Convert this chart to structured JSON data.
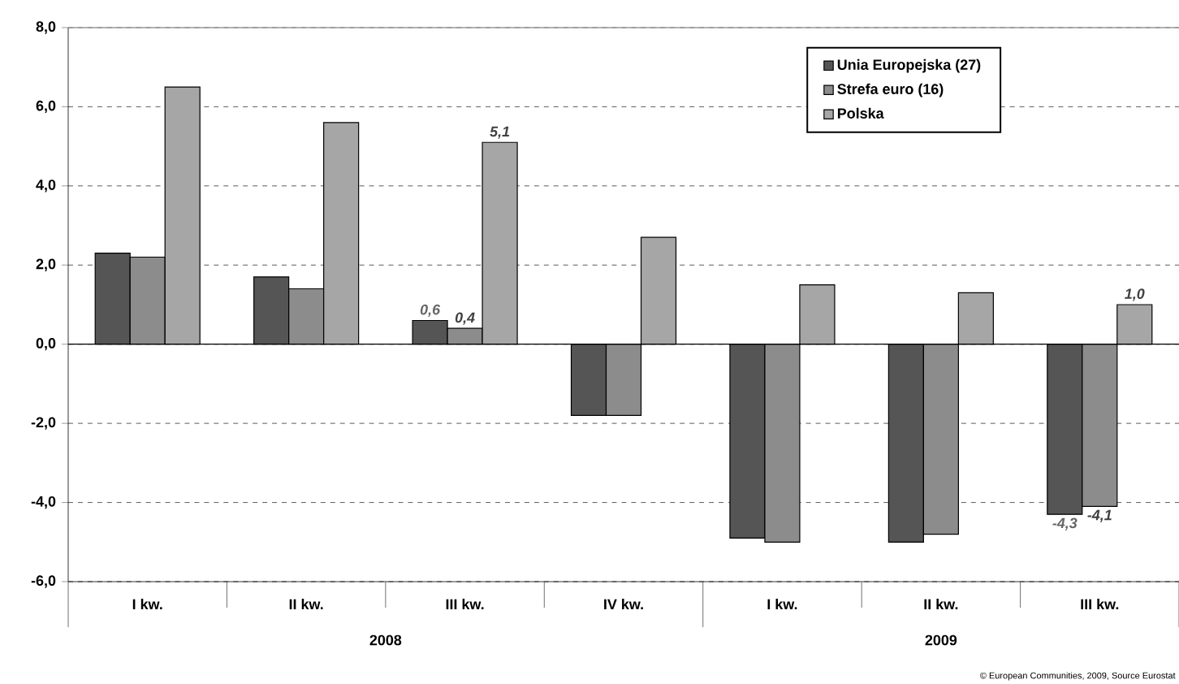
{
  "chart_data": {
    "type": "bar",
    "categories": [
      "I kw.",
      "II kw.",
      "III kw.",
      "IV kw.",
      "I kw.",
      "II kw.",
      "III kw."
    ],
    "series": [
      {
        "name": "Unia Europejska (27)",
        "color": "#555555",
        "values": [
          2.3,
          1.7,
          0.6,
          -1.8,
          -4.9,
          -5.0,
          -4.3
        ],
        "value_labels": [
          null,
          null,
          "0,6",
          null,
          null,
          null,
          "-4,3"
        ]
      },
      {
        "name": "Strefa euro (16)",
        "color": "#8c8c8c",
        "values": [
          2.2,
          1.4,
          0.4,
          -1.8,
          -5.0,
          -4.8,
          -4.1
        ],
        "value_labels": [
          null,
          null,
          "0,4",
          null,
          null,
          null,
          "-4,1"
        ]
      },
      {
        "name": "Polska",
        "color": "#a6a6a6",
        "values": [
          6.5,
          5.6,
          5.1,
          2.7,
          1.5,
          1.3,
          1.0
        ],
        "value_labels": [
          null,
          null,
          "5,1",
          null,
          null,
          null,
          "1,0"
        ]
      }
    ],
    "ylim": [
      -6,
      8
    ],
    "yticks": [
      {
        "value": -6,
        "label": "-6,0"
      },
      {
        "value": -4,
        "label": "-4,0"
      },
      {
        "value": -2,
        "label": "-2,0"
      },
      {
        "value": 0,
        "label": "0,0"
      },
      {
        "value": 2,
        "label": "2,0"
      },
      {
        "value": 4,
        "label": "4,0"
      },
      {
        "value": 6,
        "label": "6,0"
      },
      {
        "value": 8,
        "label": "8,0"
      }
    ],
    "grid": "y",
    "legend": "top right",
    "annotations": [
      "2008",
      "2009",
      "© European Communities, 2009, Source Eurostat"
    ]
  }
}
